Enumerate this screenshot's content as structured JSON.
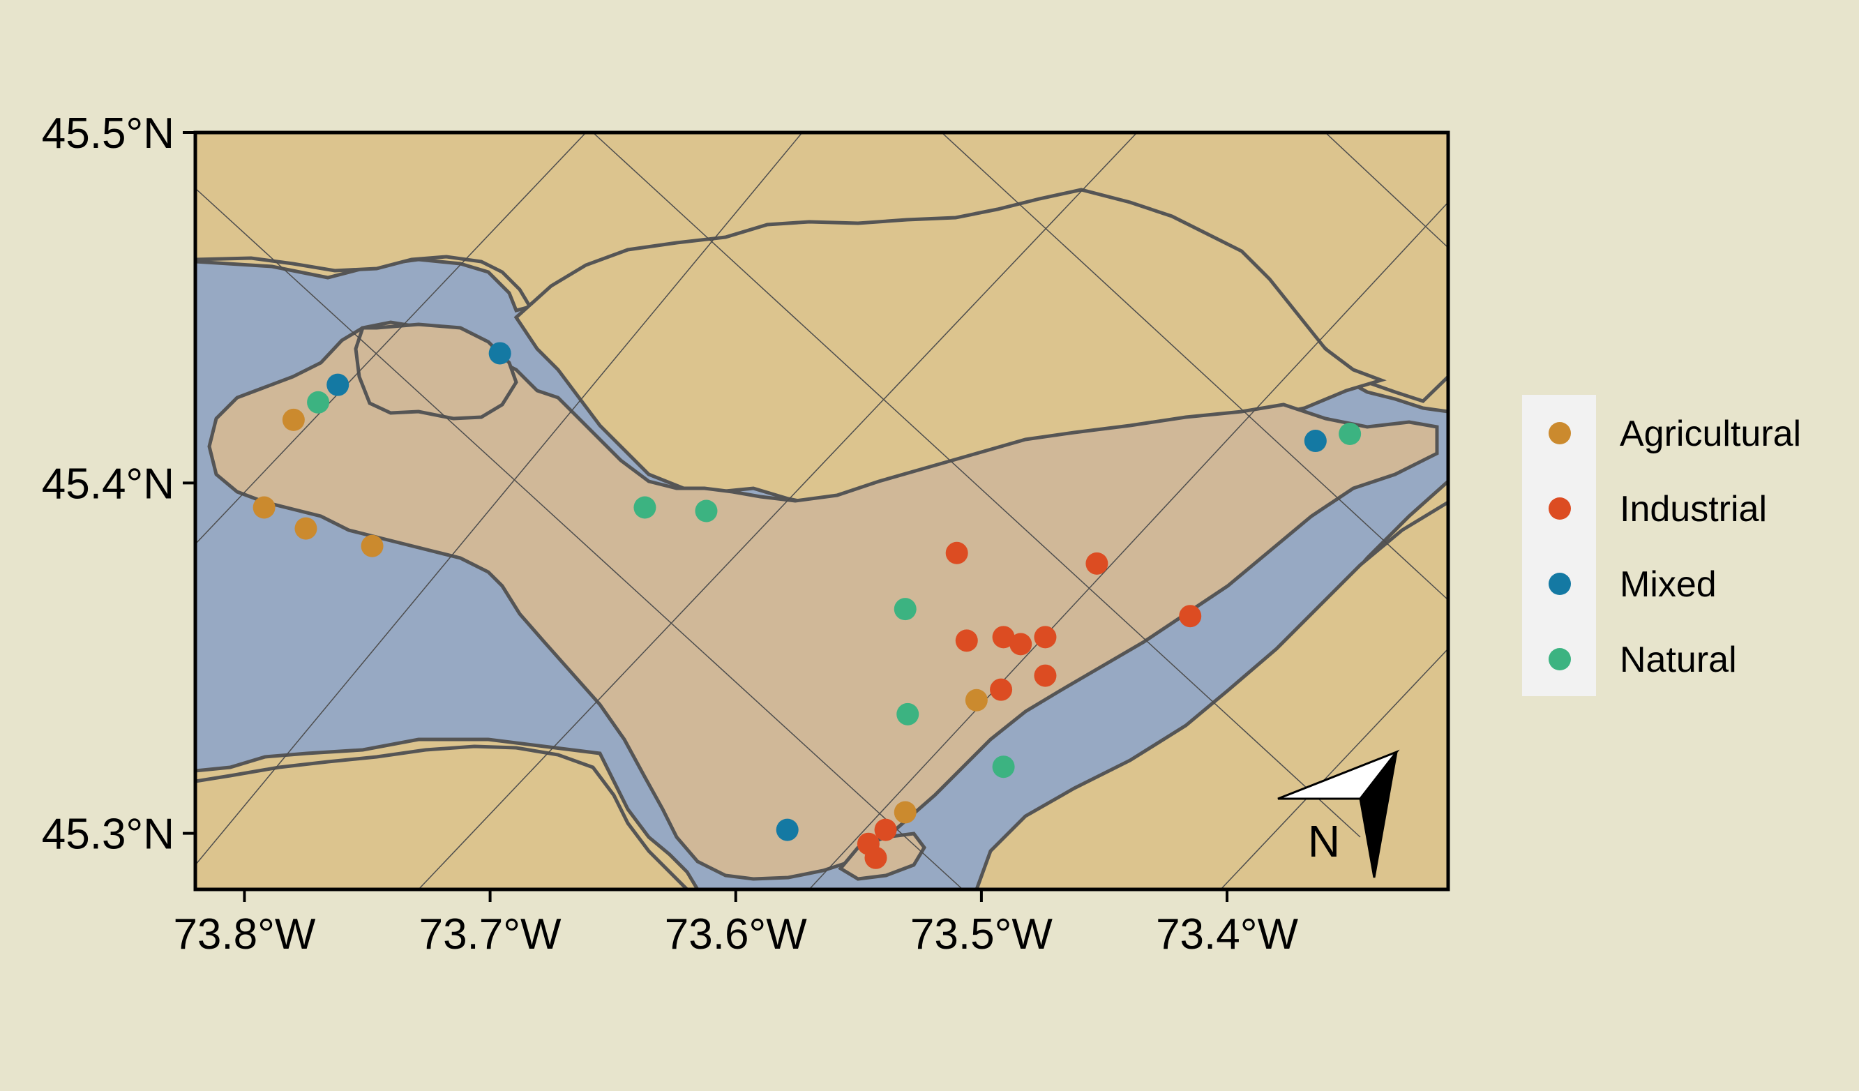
{
  "map": {
    "colors": {
      "background": "#e7e4cc",
      "land": "#dcc48e",
      "island": "#d0b898",
      "water": "#97a9c3",
      "shoreline": "#555555",
      "graticule": "#4d4d4d",
      "legend_bg": "#f2f2f2"
    },
    "axes": {
      "lon_range": [
        -73.82,
        -73.31
      ],
      "lat_range": [
        45.284,
        45.5
      ],
      "lon_ticks": [
        {
          "value": -73.8,
          "label": "73.8°W"
        },
        {
          "value": -73.7,
          "label": "73.7°W"
        },
        {
          "value": -73.6,
          "label": "73.6°W"
        },
        {
          "value": -73.5,
          "label": "73.5°W"
        },
        {
          "value": -73.4,
          "label": "73.4°W"
        }
      ],
      "lat_ticks": [
        {
          "value": 45.5,
          "label": "45.5°N"
        },
        {
          "value": 45.4,
          "label": "45.4°N"
        },
        {
          "value": 45.3,
          "label": "45.3°N"
        }
      ]
    },
    "legend": {
      "placement": "right",
      "items": [
        {
          "label": "Agricultural",
          "color": "#cb8a2e"
        },
        {
          "label": "Industrial",
          "color": "#dc4c22"
        },
        {
          "label": "Mixed",
          "color": "#1479a3"
        },
        {
          "label": "Natural",
          "color": "#3cb381"
        }
      ]
    },
    "north_arrow": {
      "label": "N"
    },
    "sites": [
      {
        "category": "Mixed",
        "lon": -73.696,
        "lat": 45.437
      },
      {
        "category": "Mixed",
        "lon": -73.762,
        "lat": 45.428
      },
      {
        "category": "Natural",
        "lon": -73.77,
        "lat": 45.423
      },
      {
        "category": "Agricultural",
        "lon": -73.78,
        "lat": 45.418
      },
      {
        "category": "Agricultural",
        "lon": -73.792,
        "lat": 45.393
      },
      {
        "category": "Agricultural",
        "lon": -73.775,
        "lat": 45.387
      },
      {
        "category": "Agricultural",
        "lon": -73.748,
        "lat": 45.382
      },
      {
        "category": "Natural",
        "lon": -73.637,
        "lat": 45.393
      },
      {
        "category": "Natural",
        "lon": -73.612,
        "lat": 45.392
      },
      {
        "category": "Industrial",
        "lon": -73.51,
        "lat": 45.38
      },
      {
        "category": "Industrial",
        "lon": -73.453,
        "lat": 45.377
      },
      {
        "category": "Natural",
        "lon": -73.531,
        "lat": 45.364
      },
      {
        "category": "Industrial",
        "lon": -73.415,
        "lat": 45.362
      },
      {
        "category": "Industrial",
        "lon": -73.506,
        "lat": 45.355
      },
      {
        "category": "Industrial",
        "lon": -73.491,
        "lat": 45.356
      },
      {
        "category": "Industrial",
        "lon": -73.484,
        "lat": 45.354
      },
      {
        "category": "Industrial",
        "lon": -73.474,
        "lat": 45.356
      },
      {
        "category": "Industrial",
        "lon": -73.474,
        "lat": 45.345
      },
      {
        "category": "Industrial",
        "lon": -73.492,
        "lat": 45.341
      },
      {
        "category": "Agricultural",
        "lon": -73.502,
        "lat": 45.338
      },
      {
        "category": "Natural",
        "lon": -73.53,
        "lat": 45.334
      },
      {
        "category": "Natural",
        "lon": -73.491,
        "lat": 45.319
      },
      {
        "category": "Agricultural",
        "lon": -73.531,
        "lat": 45.306
      },
      {
        "category": "Mixed",
        "lon": -73.579,
        "lat": 45.301
      },
      {
        "category": "Industrial",
        "lon": -73.539,
        "lat": 45.301
      },
      {
        "category": "Industrial",
        "lon": -73.546,
        "lat": 45.297
      },
      {
        "category": "Industrial",
        "lon": -73.543,
        "lat": 45.293
      },
      {
        "category": "Mixed",
        "lon": -73.364,
        "lat": 45.412
      },
      {
        "category": "Natural",
        "lon": -73.35,
        "lat": 45.414
      }
    ]
  }
}
